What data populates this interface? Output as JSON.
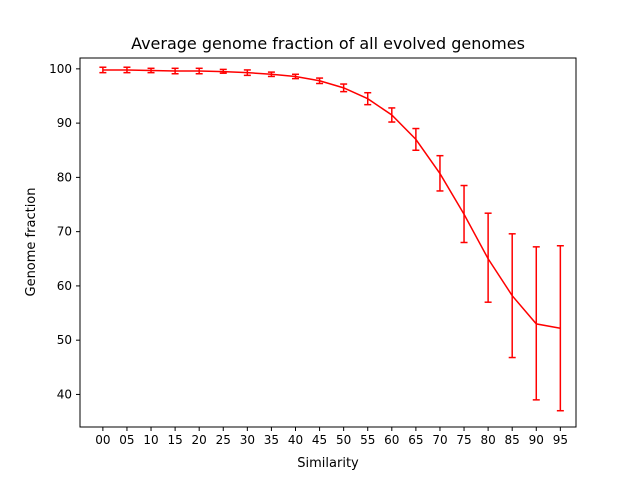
{
  "chart_data": {
    "type": "line",
    "title": "Average genome fraction of all evolved genomes",
    "xlabel": "Similarity",
    "ylabel": "Genome fraction",
    "categories": [
      "00",
      "05",
      "10",
      "15",
      "20",
      "25",
      "30",
      "35",
      "40",
      "45",
      "50",
      "55",
      "60",
      "65",
      "70",
      "75",
      "80",
      "85",
      "90",
      "95"
    ],
    "yticks": [
      40,
      50,
      60,
      70,
      80,
      90,
      100
    ],
    "ylim": [
      34,
      102
    ],
    "grid": false,
    "legend": "none",
    "series": [
      {
        "color": "#ff0000",
        "error_bars": true,
        "values": [
          99.8,
          99.8,
          99.7,
          99.6,
          99.6,
          99.5,
          99.3,
          99.0,
          98.6,
          97.8,
          96.5,
          94.5,
          91.5,
          87.0,
          80.7,
          73.2,
          65.0,
          58.2,
          53.0,
          52.2
        ],
        "err_low": [
          99.3,
          99.3,
          99.3,
          99.1,
          99.1,
          99.2,
          98.8,
          98.6,
          98.2,
          97.3,
          95.8,
          93.4,
          90.2,
          85.0,
          77.5,
          68.0,
          57.0,
          46.8,
          39.0,
          37.0
        ],
        "err_high": [
          100.3,
          100.3,
          100.1,
          100.1,
          100.1,
          99.9,
          99.8,
          99.4,
          99.0,
          98.3,
          97.2,
          95.6,
          92.8,
          89.0,
          84.0,
          78.5,
          73.4,
          69.6,
          67.2,
          67.4
        ]
      }
    ]
  }
}
